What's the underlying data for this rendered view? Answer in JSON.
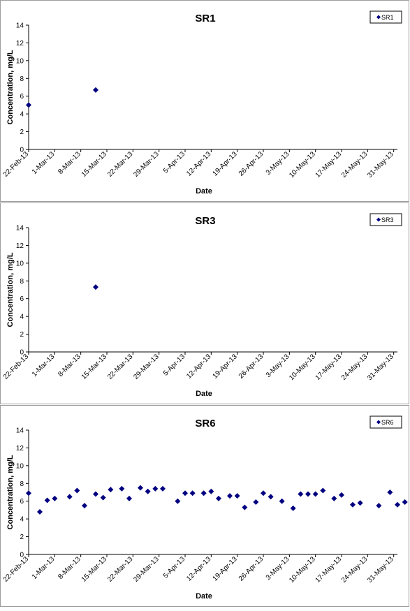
{
  "chart_data": [
    {
      "type": "scatter",
      "title": "SR1",
      "xlabel": "Date",
      "ylabel": "Concentration, mg/L",
      "ylim": [
        0,
        14
      ],
      "yticks": [
        0,
        2,
        4,
        6,
        8,
        10,
        12,
        14
      ],
      "xticks": [
        "22-Feb-13",
        "1-Mar-13",
        "8-Mar-13",
        "15-Mar-13",
        "22-Mar-13",
        "29-Mar-13",
        "5-Apr-13",
        "12-Apr-13",
        "19-Apr-13",
        "26-Apr-13",
        "3-May-13",
        "10-May-13",
        "17-May-13",
        "24-May-13",
        "31-May-13"
      ],
      "grid": false,
      "legend": "top-right",
      "series": [
        {
          "name": "SR1",
          "color": "#000080",
          "marker": "diamond",
          "points": [
            [
              "2013-02-22",
              5.0
            ],
            [
              "2013-03-12",
              6.7
            ]
          ]
        }
      ]
    },
    {
      "type": "scatter",
      "title": "SR3",
      "xlabel": "Date",
      "ylabel": "Concentration, mg/L",
      "ylim": [
        0,
        14
      ],
      "yticks": [
        0,
        2,
        4,
        6,
        8,
        10,
        12,
        14
      ],
      "xticks": [
        "22-Feb-13",
        "1-Mar-13",
        "8-Mar-13",
        "15-Mar-13",
        "22-Mar-13",
        "29-Mar-13",
        "5-Apr-13",
        "12-Apr-13",
        "19-Apr-13",
        "26-Apr-13",
        "3-May-13",
        "10-May-13",
        "17-May-13",
        "24-May-13",
        "31-May-13"
      ],
      "grid": false,
      "legend": "top-right",
      "series": [
        {
          "name": "SR3",
          "color": "#000080",
          "marker": "diamond",
          "points": [
            [
              "2013-03-12",
              7.3
            ]
          ]
        }
      ]
    },
    {
      "type": "scatter",
      "title": "SR6",
      "xlabel": "Date",
      "ylabel": "Concentration, mg/L",
      "ylim": [
        0,
        14
      ],
      "yticks": [
        0,
        2,
        4,
        6,
        8,
        10,
        12,
        14
      ],
      "xticks": [
        "22-Feb-13",
        "1-Mar-13",
        "8-Mar-13",
        "15-Mar-13",
        "22-Mar-13",
        "29-Mar-13",
        "5-Apr-13",
        "12-Apr-13",
        "19-Apr-13",
        "26-Apr-13",
        "3-May-13",
        "10-May-13",
        "17-May-13",
        "24-May-13",
        "31-May-13"
      ],
      "grid": false,
      "legend": "top-right",
      "series": [
        {
          "name": "SR6",
          "color": "#000080",
          "marker": "diamond",
          "points": [
            [
              "2013-02-22",
              6.9
            ],
            [
              "2013-02-25",
              4.8
            ],
            [
              "2013-02-27",
              6.1
            ],
            [
              "2013-03-01",
              6.3
            ],
            [
              "2013-03-05",
              6.5
            ],
            [
              "2013-03-07",
              7.2
            ],
            [
              "2013-03-09",
              5.5
            ],
            [
              "2013-03-12",
              6.8
            ],
            [
              "2013-03-14",
              6.4
            ],
            [
              "2013-03-16",
              7.3
            ],
            [
              "2013-03-19",
              7.4
            ],
            [
              "2013-03-21",
              6.3
            ],
            [
              "2013-03-24",
              7.5
            ],
            [
              "2013-03-26",
              7.1
            ],
            [
              "2013-03-28",
              7.4
            ],
            [
              "2013-03-30",
              7.4
            ],
            [
              "2013-04-03",
              6.0
            ],
            [
              "2013-04-05",
              6.9
            ],
            [
              "2013-04-07",
              6.9
            ],
            [
              "2013-04-10",
              6.9
            ],
            [
              "2013-04-12",
              7.1
            ],
            [
              "2013-04-14",
              6.3
            ],
            [
              "2013-04-17",
              6.6
            ],
            [
              "2013-04-19",
              6.6
            ],
            [
              "2013-04-21",
              5.3
            ],
            [
              "2013-04-24",
              5.9
            ],
            [
              "2013-04-26",
              6.9
            ],
            [
              "2013-04-28",
              6.5
            ],
            [
              "2013-05-01",
              6.0
            ],
            [
              "2013-05-04",
              5.2
            ],
            [
              "2013-05-06",
              6.8
            ],
            [
              "2013-05-08",
              6.8
            ],
            [
              "2013-05-10",
              6.8
            ],
            [
              "2013-05-12",
              7.2
            ],
            [
              "2013-05-15",
              6.3
            ],
            [
              "2013-05-17",
              6.7
            ],
            [
              "2013-05-20",
              5.6
            ],
            [
              "2013-05-22",
              5.8
            ],
            [
              "2013-05-27",
              5.5
            ],
            [
              "2013-05-30",
              7.0
            ],
            [
              "2013-06-01",
              5.6
            ],
            [
              "2013-06-03",
              5.9
            ]
          ]
        }
      ]
    }
  ]
}
